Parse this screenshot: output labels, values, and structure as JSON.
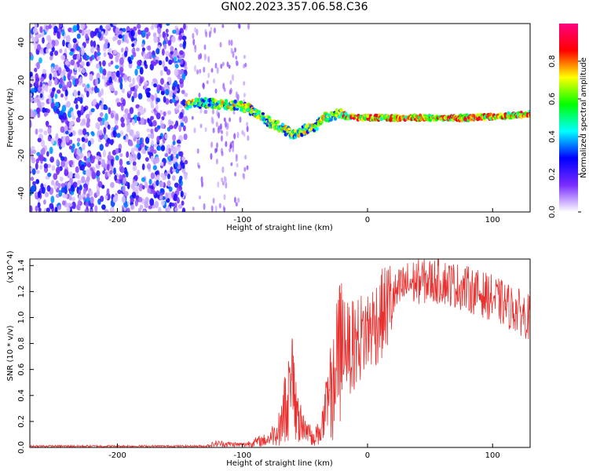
{
  "title": "GN02.2023.357.06.58.C36",
  "chart_data": [
    {
      "type": "heatmap",
      "xlabel": "Height of straight line (km)",
      "ylabel": "Frequency (Hz)",
      "xlim": [
        -270,
        130
      ],
      "ylim": [
        -50,
        50
      ],
      "x_ticks": [
        -200,
        -100,
        0,
        100
      ],
      "y_ticks": [
        -40,
        -20,
        0,
        20,
        40
      ],
      "colorbar": {
        "label": "Normalized spectral amplitude",
        "range": [
          0,
          1
        ],
        "ticks": [
          "0.0",
          "0.2",
          "0.4",
          "0.6",
          "0.8"
        ],
        "colors": [
          "#ffffff",
          "#7a2cff",
          "#0000ff",
          "#00ffff",
          "#00ff00",
          "#ffff00",
          "#ff0000",
          "#ff0080"
        ]
      },
      "ridge": {
        "x": [
          -145,
          -130,
          -115,
          -100,
          -90,
          -80,
          -70,
          -60,
          -50,
          -42,
          -35,
          -28,
          -22,
          -18,
          -12,
          -5,
          0,
          20,
          50,
          80,
          110,
          130
        ],
        "y": [
          7,
          8,
          7,
          6,
          3,
          -2,
          -5,
          -9,
          -6,
          -5,
          0,
          1,
          3,
          1,
          0,
          0,
          0,
          0,
          0,
          0,
          1,
          2
        ]
      },
      "noise_region_x": [
        -270,
        -145
      ]
    },
    {
      "type": "line",
      "xlabel": "Height of straight line (km)",
      "ylabel": "SNR (10 * v/v)",
      "y_multiplier": "(x10^4)",
      "xlim": [
        -270,
        130
      ],
      "ylim": [
        0,
        1.45
      ],
      "x_ticks": [
        -200,
        -100,
        0,
        100
      ],
      "y_ticks": [
        "0.0",
        "0.2",
        "0.4",
        "0.6",
        "0.8",
        "1.0",
        "1.2",
        "1.4"
      ],
      "color": "#e8312f",
      "envelope_x": [
        -270,
        -130,
        -120,
        -100,
        -80,
        -70,
        -65,
        -60,
        -55,
        -50,
        -45,
        -40,
        -35,
        -30,
        -25,
        -20,
        -15,
        -10,
        0,
        10,
        20,
        30,
        40,
        60,
        80,
        100,
        120,
        130
      ],
      "envelope_y": [
        0.01,
        0.01,
        0.03,
        0.02,
        0.06,
        0.15,
        0.35,
        0.45,
        0.2,
        0.15,
        0.1,
        0.1,
        0.2,
        0.4,
        0.5,
        0.9,
        0.75,
        0.8,
        0.9,
        1.0,
        1.15,
        1.25,
        1.28,
        1.28,
        1.22,
        1.15,
        1.05,
        1.0
      ]
    }
  ]
}
